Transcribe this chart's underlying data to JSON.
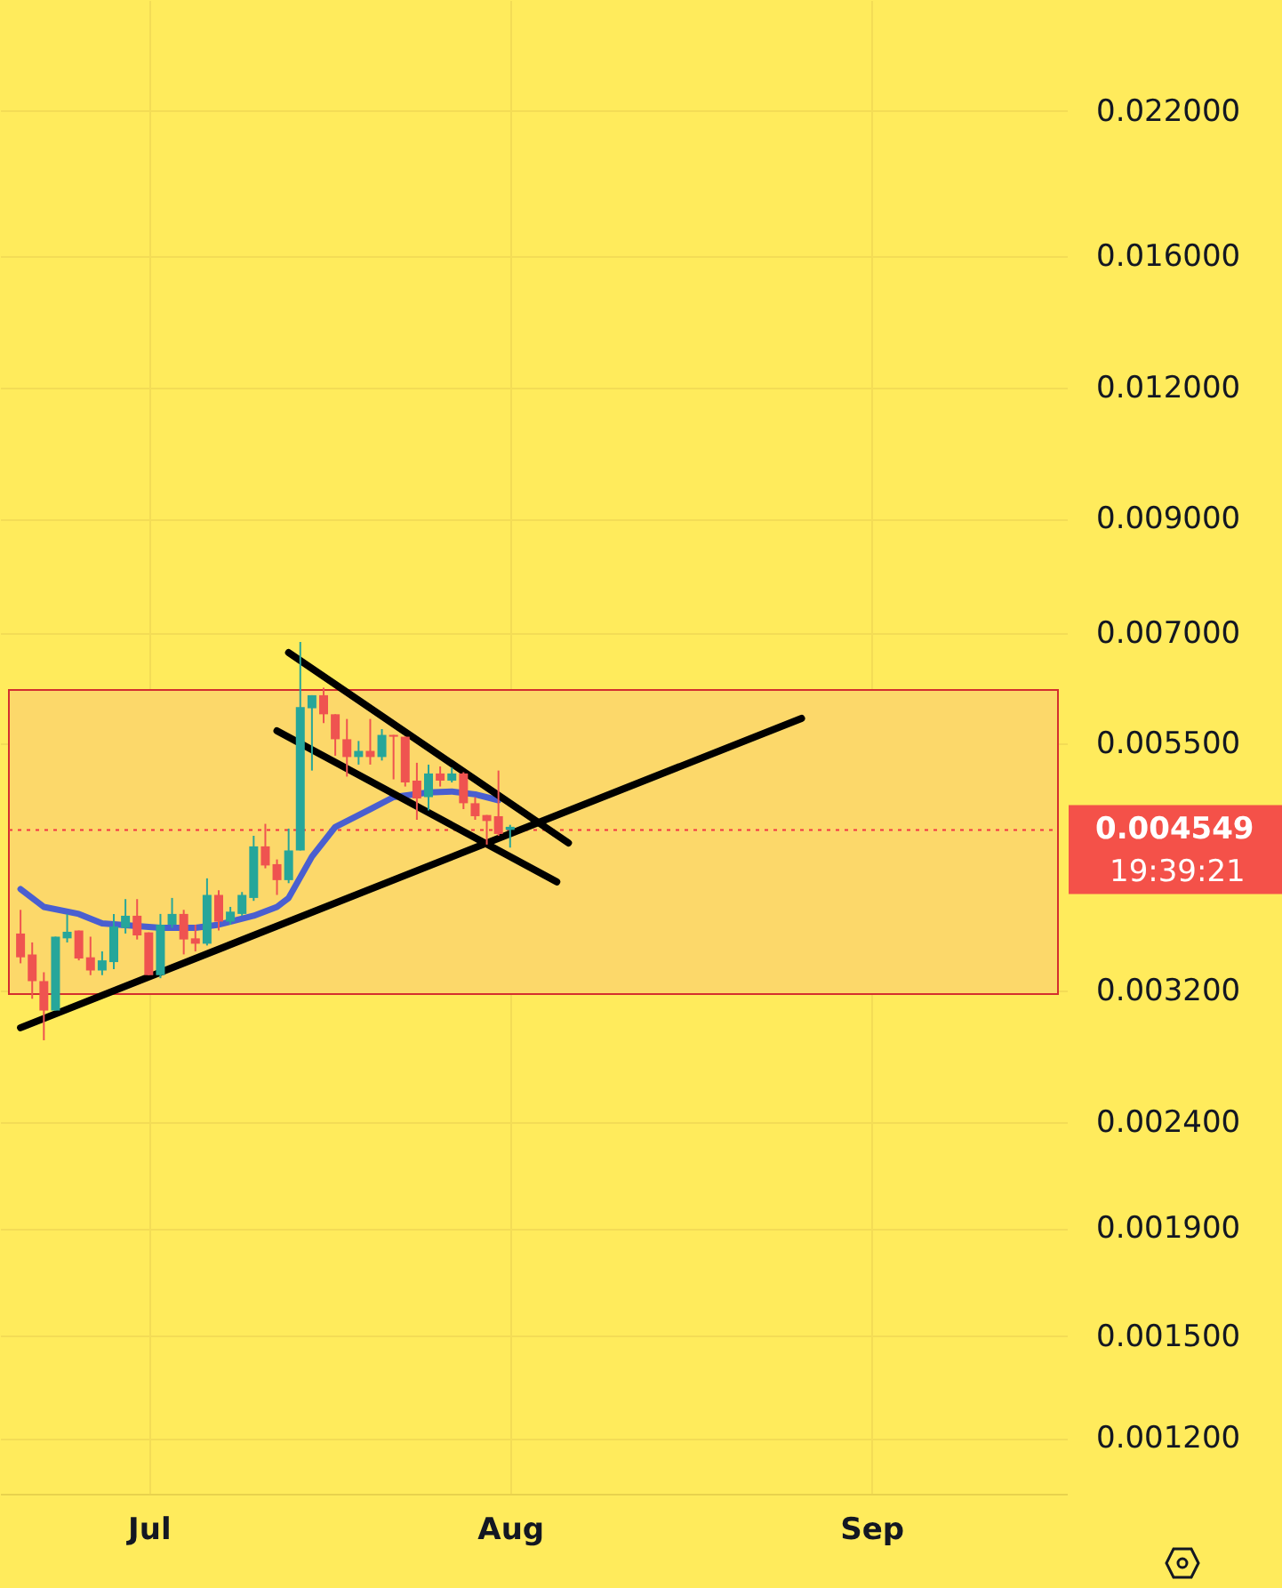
{
  "chart_data": {
    "type": "candlestick",
    "x": [
      "--06-20",
      "--06-21",
      "--06-22",
      "--06-23",
      "--06-24",
      "--06-25",
      "--06-26",
      "--06-27",
      "--06-28",
      "--06-29",
      "--06-30",
      "--07-01",
      "--07-02",
      "--07-03",
      "--07-04",
      "--07-05",
      "--07-06",
      "--07-07",
      "--07-08",
      "--07-09",
      "--07-10",
      "--07-11",
      "--07-12",
      "--07-13",
      "--07-14",
      "--07-15",
      "--07-16",
      "--07-17",
      "--07-18",
      "--07-19",
      "--07-20",
      "--07-21",
      "--07-22",
      "--07-23",
      "--07-24",
      "--07-25",
      "--07-26",
      "--07-27",
      "--07-28",
      "--07-29",
      "--07-30",
      "--07-31",
      "--08-01"
    ],
    "ohlc": [
      [
        0.003625,
        0.003818,
        0.003396,
        0.003441
      ],
      [
        0.003463,
        0.003555,
        0.003142,
        0.003266
      ],
      [
        0.003266,
        0.00333,
        0.002869,
        0.003062
      ],
      [
        0.003062,
        0.0036,
        0.003062,
        0.0036
      ],
      [
        0.003587,
        0.003784,
        0.003555,
        0.003639
      ],
      [
        0.003649,
        0.003649,
        0.003418,
        0.003432
      ],
      [
        0.003441,
        0.0036,
        0.003309,
        0.003343
      ],
      [
        0.003343,
        0.003486,
        0.003309,
        0.003418
      ],
      [
        0.003405,
        0.003784,
        0.003352,
        0.003682
      ],
      [
        0.003671,
        0.003909,
        0.003625,
        0.003769
      ],
      [
        0.003769,
        0.003909,
        0.003578,
        0.00361
      ],
      [
        0.003634,
        0.003634,
        0.003309,
        0.003309
      ],
      [
        0.003309,
        0.003784,
        0.003287,
        0.003696
      ],
      [
        0.003696,
        0.003919,
        0.003671,
        0.003784
      ],
      [
        0.003784,
        0.003818,
        0.003463,
        0.003578
      ],
      [
        0.003587,
        0.003696,
        0.003486,
        0.003545
      ],
      [
        0.003545,
        0.004091,
        0.003531,
        0.003945
      ],
      [
        0.003945,
        0.003985,
        0.003649,
        0.003721
      ],
      [
        0.003721,
        0.003843,
        0.003696,
        0.003803
      ],
      [
        0.003784,
        0.00397,
        0.003769,
        0.003945
      ],
      [
        0.003919,
        0.004491,
        0.003894,
        0.004388
      ],
      [
        0.004388,
        0.00461,
        0.004182,
        0.004208
      ],
      [
        0.00422,
        0.004264,
        0.003945,
        0.004075
      ],
      [
        0.004075,
        0.004562,
        0.004048,
        0.004349
      ],
      [
        0.004349,
        0.006868,
        0.004349,
        0.005953
      ],
      [
        0.005939,
        0.006111,
        0.005181,
        0.006111
      ],
      [
        0.006111,
        0.006213,
        0.005748,
        0.005861
      ],
      [
        0.005861,
        0.005861,
        0.005352,
        0.005549
      ],
      [
        0.005549,
        0.005801,
        0.005113,
        0.005337
      ],
      [
        0.005337,
        0.005528,
        0.005249,
        0.005409
      ],
      [
        0.005409,
        0.005801,
        0.005249,
        0.005337
      ],
      [
        0.005337,
        0.005674,
        0.005296,
        0.005602
      ],
      [
        0.005602,
        0.005602,
        0.005082,
        0.00558
      ],
      [
        0.00558,
        0.00558,
        0.005003,
        0.005048
      ],
      [
        0.005068,
        0.00527,
        0.004651,
        0.004874
      ],
      [
        0.004888,
        0.005249,
        0.004748,
        0.005148
      ],
      [
        0.005148,
        0.005228,
        0.005003,
        0.005068
      ],
      [
        0.005068,
        0.005214,
        0.005048,
        0.005148
      ],
      [
        0.005148,
        0.005162,
        0.004761,
        0.004823
      ],
      [
        0.004823,
        0.004888,
        0.004651,
        0.004688
      ],
      [
        0.0047,
        0.0047,
        0.004405,
        0.004639
      ],
      [
        0.004688,
        0.005181,
        0.004491,
        0.004509
      ],
      [
        0.00458,
        0.0046,
        0.004376,
        0.004549
      ]
    ],
    "colors": [
      "#ef5350",
      "#ef5350",
      "#ef5350",
      "#26a69a",
      "#26a69a",
      "#ef5350",
      "#ef5350",
      "#26a69a",
      "#26a69a",
      "#26a69a",
      "#ef5350",
      "#ef5350",
      "#26a69a",
      "#26a69a",
      "#ef5350",
      "#ef5350",
      "#26a69a",
      "#ef5350",
      "#26a69a",
      "#26a69a",
      "#26a69a",
      "#ef5350",
      "#ef5350",
      "#26a69a",
      "#26a69a",
      "#26a69a",
      "#ef5350",
      "#ef5350",
      "#ef5350",
      "#26a69a",
      "#ef5350",
      "#26a69a",
      "#ef5350",
      "#ef5350",
      "#ef5350",
      "#26a69a",
      "#ef5350",
      "#26a69a",
      "#ef5350",
      "#ef5350",
      "#ef5350",
      "#ef5350",
      "#26a69a"
    ],
    "series": [
      {
        "type": "line",
        "color": "#4a5fd0",
        "x": [
          "--06-20",
          "--06-22",
          "--06-25",
          "--06-27",
          "--07-02",
          "--07-05",
          "--07-07",
          "--07-10",
          "--07-12",
          "--07-13",
          "--07-14",
          "--07-15",
          "--07-17",
          "--07-20",
          "--07-22",
          "--07-25",
          "--07-27",
          "--07-29",
          "--07-31"
        ],
        "values": [
          0.003996,
          0.003843,
          0.003784,
          0.003706,
          0.003671,
          0.003671,
          0.003696,
          0.003769,
          0.003843,
          0.003919,
          0.004101,
          0.004291,
          0.004579,
          0.004761,
          0.004888,
          0.004938,
          0.004949,
          0.004918,
          0.004855
        ]
      },
      {
        "type": "line",
        "color": "#000000",
        "x": [
          "--06-20",
          "--08-26"
        ],
        "values": [
          0.002949,
          0.005809
        ]
      },
      {
        "type": "line",
        "color": "#000000",
        "x": [
          "--07-13",
          "--08-06"
        ],
        "values": [
          0.006709,
          0.004421
        ]
      },
      {
        "type": "line",
        "color": "#000000",
        "x": [
          "--07-12",
          "--08-05"
        ],
        "values": [
          0.005652,
          0.00406
        ]
      }
    ],
    "bands": [
      {
        "axis": "y",
        "from": 0.003175,
        "to": 0.006182,
        "color": "#fcd86a"
      }
    ],
    "ref_lines": [
      {
        "axis": "y",
        "value": 0.004549,
        "label": "0.004549",
        "color": "#f23645",
        "line_style": "dotted"
      }
    ],
    "annotations": [
      "19:39:21"
    ],
    "xlim": [
      "--06-19",
      "--09-17"
    ],
    "xticks": [
      {
        "value": "--07-01",
        "label": "Jul"
      },
      {
        "value": "--08-01",
        "label": "Aug"
      },
      {
        "value": "--09-01",
        "label": "Sep"
      }
    ],
    "log": "y",
    "ylim": [
      0.001062,
      0.02804
    ],
    "yticks": [
      {
        "value": 0.0012,
        "label": "0.001200"
      },
      {
        "value": 0.0015,
        "label": "0.001500"
      },
      {
        "value": 0.0019,
        "label": "0.001900"
      },
      {
        "value": 0.0024,
        "label": "0.002400"
      },
      {
        "value": 0.0032,
        "label": "0.003200"
      },
      {
        "value": 0.0055,
        "label": "0.005500"
      },
      {
        "value": 0.007,
        "label": "0.007000"
      },
      {
        "value": 0.009,
        "label": "0.009000"
      },
      {
        "value": 0.012,
        "label": "0.012000"
      },
      {
        "value": 0.016,
        "label": "0.016000"
      },
      {
        "value": 0.022,
        "label": "0.022000"
      }
    ],
    "grid": true,
    "line_style": "solid",
    "marker": "none"
  }
}
